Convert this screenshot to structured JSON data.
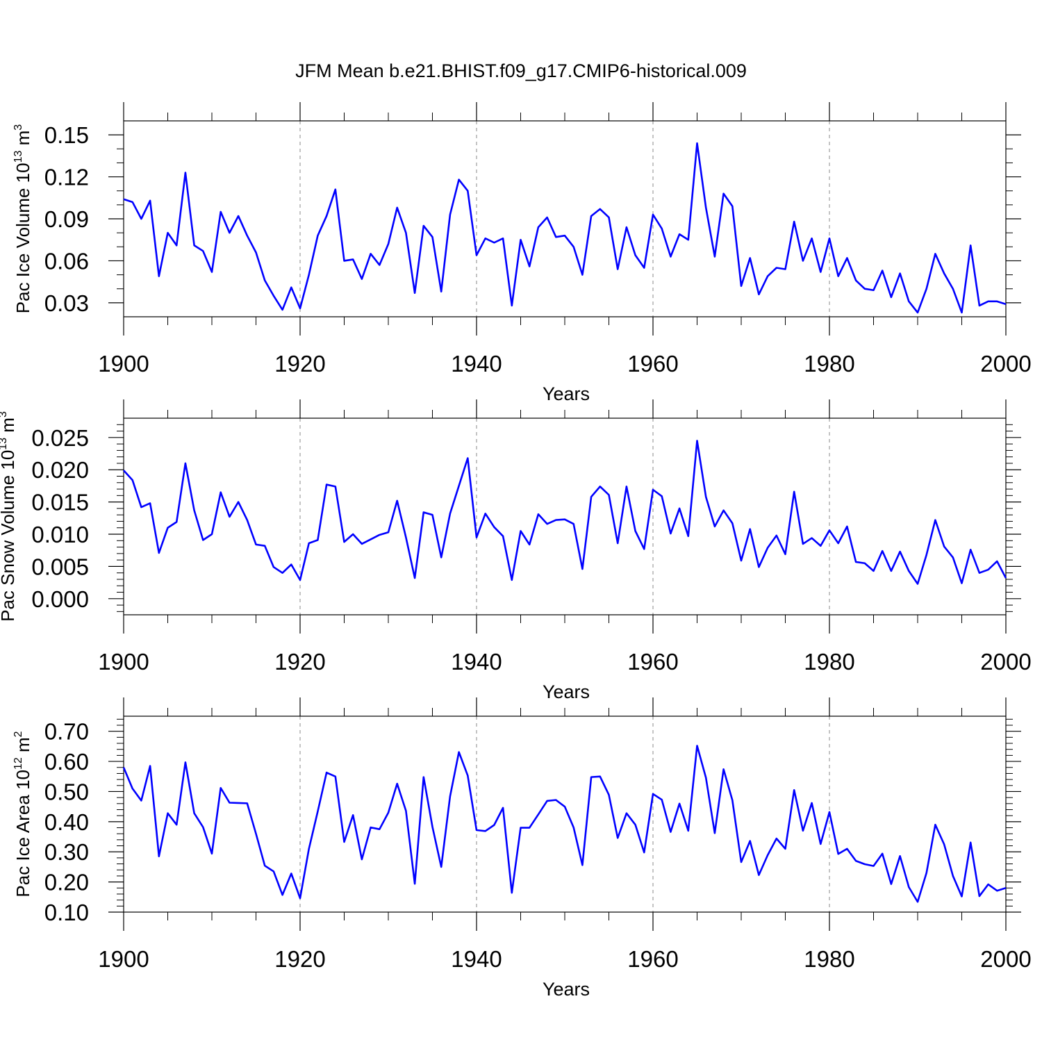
{
  "figure_title": "JFM Mean b.e21.BHIST.f09_g17.CMIP6-historical.009",
  "colors": {
    "line": "#0000ff",
    "axis": "#000000",
    "grid": "#888888",
    "background": "#ffffff"
  },
  "chart_data": [
    {
      "type": "line",
      "name": "pac-ice-volume",
      "ylabel": {
        "main": "Pac Ice Volume 10",
        "exp": "13",
        "unit": " m",
        "unit_exp": "3"
      },
      "xlabel": "Years",
      "xlim": [
        1900,
        2000
      ],
      "ylim": [
        0.02,
        0.16
      ],
      "yticks": [
        0.03,
        0.06,
        0.09,
        0.12,
        0.15
      ],
      "ytick_labels": [
        "0.03",
        "0.06",
        "0.09",
        "0.12",
        "0.15"
      ],
      "yminor_step": 0.01,
      "xticks": [
        1900,
        1920,
        1940,
        1960,
        1980,
        2000
      ],
      "xtick_labels": [
        "1900",
        "1920",
        "1940",
        "1960",
        "1980",
        "2000"
      ],
      "grid_x": [
        1920,
        1940,
        1960,
        1980
      ],
      "x_start": 1900,
      "values": [
        0.104,
        0.102,
        0.09,
        0.103,
        0.049,
        0.08,
        0.071,
        0.123,
        0.071,
        0.067,
        0.052,
        0.095,
        0.08,
        0.092,
        0.078,
        0.066,
        0.046,
        0.035,
        0.025,
        0.041,
        0.026,
        0.05,
        0.078,
        0.092,
        0.111,
        0.06,
        0.061,
        0.047,
        0.065,
        0.057,
        0.072,
        0.098,
        0.08,
        0.037,
        0.085,
        0.077,
        0.038,
        0.093,
        0.118,
        0.11,
        0.064,
        0.076,
        0.073,
        0.076,
        0.028,
        0.075,
        0.056,
        0.084,
        0.091,
        0.077,
        0.078,
        0.07,
        0.05,
        0.092,
        0.097,
        0.091,
        0.054,
        0.084,
        0.064,
        0.055,
        0.093,
        0.083,
        0.063,
        0.079,
        0.075,
        0.144,
        0.098,
        0.063,
        0.108,
        0.099,
        0.042,
        0.062,
        0.036,
        0.049,
        0.055,
        0.054,
        0.088,
        0.06,
        0.076,
        0.052,
        0.076,
        0.049,
        0.062,
        0.046,
        0.04,
        0.039,
        0.053,
        0.034,
        0.051,
        0.031,
        0.023,
        0.04,
        0.065,
        0.051,
        0.04,
        0.023,
        0.071,
        0.028,
        0.031,
        0.031,
        0.029
      ]
    },
    {
      "type": "line",
      "name": "pac-snow-volume",
      "ylabel": {
        "main": "Pac Snow Volume 10",
        "exp": "13",
        "unit": " m",
        "unit_exp": "3"
      },
      "xlabel": "Years",
      "xlim": [
        1900,
        2000
      ],
      "ylim": [
        -0.0025,
        0.028
      ],
      "yticks": [
        0.0,
        0.005,
        0.01,
        0.015,
        0.02,
        0.025
      ],
      "ytick_labels": [
        "0.000",
        "0.005",
        "0.010",
        "0.015",
        "0.020",
        "0.025"
      ],
      "yminor_step": 0.001,
      "xticks": [
        1900,
        1920,
        1940,
        1960,
        1980,
        2000
      ],
      "xtick_labels": [
        "1900",
        "1920",
        "1940",
        "1960",
        "1980",
        "2000"
      ],
      "grid_x": [
        1920,
        1940,
        1960,
        1980
      ],
      "x_start": 1900,
      "values": [
        0.0199,
        0.0184,
        0.0142,
        0.0148,
        0.0071,
        0.011,
        0.0119,
        0.021,
        0.0137,
        0.0091,
        0.01,
        0.0165,
        0.0127,
        0.015,
        0.0122,
        0.0084,
        0.0082,
        0.0049,
        0.004,
        0.0053,
        0.0029,
        0.0086,
        0.0091,
        0.0177,
        0.0174,
        0.0088,
        0.01,
        0.0085,
        0.0092,
        0.0099,
        0.0103,
        0.0152,
        0.0095,
        0.0032,
        0.0134,
        0.013,
        0.0064,
        0.0132,
        0.0175,
        0.0218,
        0.0095,
        0.0132,
        0.0111,
        0.0097,
        0.0029,
        0.0105,
        0.0084,
        0.0131,
        0.0116,
        0.0122,
        0.0123,
        0.0116,
        0.0046,
        0.0158,
        0.0174,
        0.0161,
        0.0086,
        0.0174,
        0.0105,
        0.0077,
        0.0169,
        0.0159,
        0.0101,
        0.014,
        0.0097,
        0.0245,
        0.0158,
        0.0112,
        0.0137,
        0.0117,
        0.0059,
        0.0108,
        0.0049,
        0.0079,
        0.0098,
        0.0069,
        0.0166,
        0.0085,
        0.0094,
        0.0082,
        0.0106,
        0.0086,
        0.0112,
        0.0057,
        0.0055,
        0.0043,
        0.0074,
        0.0043,
        0.0073,
        0.0043,
        0.0023,
        0.0068,
        0.0122,
        0.0081,
        0.0064,
        0.0024,
        0.0076,
        0.004,
        0.0045,
        0.0058,
        0.0032
      ]
    },
    {
      "type": "line",
      "name": "pac-ice-area",
      "ylabel": {
        "main": "Pac Ice Area 10",
        "exp": "12",
        "unit": " m",
        "unit_exp": "2"
      },
      "xlabel": "Years",
      "xlim": [
        1900,
        2000
      ],
      "ylim": [
        0.1,
        0.75
      ],
      "yticks": [
        0.1,
        0.2,
        0.3,
        0.4,
        0.5,
        0.6,
        0.7
      ],
      "ytick_labels": [
        "0.10",
        "0.20",
        "0.30",
        "0.40",
        "0.50",
        "0.60",
        "0.70"
      ],
      "yminor_step": 0.02,
      "xticks": [
        1900,
        1920,
        1940,
        1960,
        1980,
        2000
      ],
      "xtick_labels": [
        "1900",
        "1920",
        "1940",
        "1960",
        "1980",
        "2000"
      ],
      "grid_x": [
        1920,
        1940,
        1960,
        1980
      ],
      "x_start": 1900,
      "values": [
        0.58,
        0.51,
        0.47,
        0.585,
        0.285,
        0.428,
        0.39,
        0.597,
        0.428,
        0.382,
        0.294,
        0.512,
        0.463,
        0.462,
        0.461,
        0.36,
        0.254,
        0.235,
        0.157,
        0.228,
        0.146,
        0.31,
        0.434,
        0.563,
        0.55,
        0.333,
        0.422,
        0.275,
        0.381,
        0.375,
        0.43,
        0.526,
        0.436,
        0.194,
        0.548,
        0.383,
        0.25,
        0.484,
        0.631,
        0.553,
        0.372,
        0.369,
        0.389,
        0.446,
        0.164,
        0.38,
        0.38,
        0.424,
        0.469,
        0.472,
        0.45,
        0.381,
        0.256,
        0.548,
        0.55,
        0.489,
        0.346,
        0.428,
        0.39,
        0.298,
        0.492,
        0.473,
        0.366,
        0.46,
        0.37,
        0.652,
        0.546,
        0.362,
        0.574,
        0.471,
        0.266,
        0.336,
        0.223,
        0.289,
        0.344,
        0.31,
        0.505,
        0.37,
        0.462,
        0.326,
        0.432,
        0.293,
        0.31,
        0.27,
        0.259,
        0.253,
        0.294,
        0.193,
        0.286,
        0.183,
        0.134,
        0.23,
        0.39,
        0.325,
        0.22,
        0.152,
        0.331,
        0.153,
        0.192,
        0.171,
        0.18
      ]
    }
  ]
}
